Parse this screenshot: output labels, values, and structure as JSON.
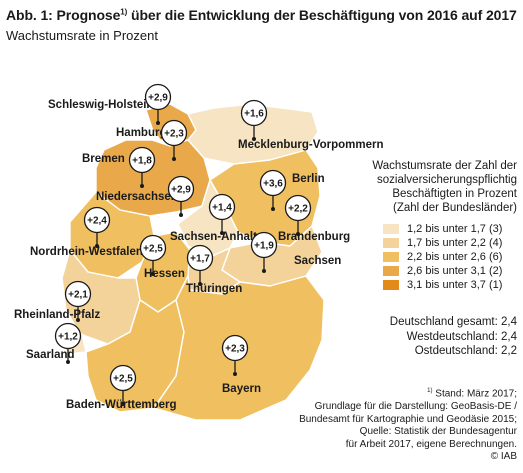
{
  "title": {
    "text": "Abb. 1: Prognose",
    "superscript": "1)",
    "rest": " über die Entwicklung der Beschäftigung von 2016 auf 2017"
  },
  "subtitle": "Wachstumsrate in Prozent",
  "legend": {
    "title_lines": [
      "Wachstumsrate der Zahl der",
      "sozialversicherungspflichtig",
      "Beschäftigten in Prozent",
      "(Zahl der Bundesländer)"
    ],
    "items": [
      {
        "label": "1,2 bis unter 1,7 (3)",
        "color": "#f6e4c3"
      },
      {
        "label": "1,7 bis unter 2,2 (4)",
        "color": "#f3d39a"
      },
      {
        "label": "2,2 bis unter 2,6 (6)",
        "color": "#f0bf60"
      },
      {
        "label": "2,6 bis unter 3,1 (2)",
        "color": "#e9a94b"
      },
      {
        "label": "3,1 bis unter 3,7 (1)",
        "color": "#e28a1a"
      }
    ]
  },
  "totals": {
    "line1": "Deutschland gesamt: 2,4",
    "line2": "Westdeutschland: 2,4",
    "line3": "Ostdeutschland: 2,2"
  },
  "footnote": {
    "line1_sup": "1)",
    "line1": " Stand: März 2017;",
    "line2": "Grundlage für die Darstellung: GeoBasis-DE /",
    "line3": "Bundesamt für Kartographie und Geodäsie 2015;",
    "line4": "Quelle: Statistik der Bundesagentur",
    "line5": "für Arbeit 2017, eigene Berechnungen.",
    "line6": "© IAB"
  },
  "states": [
    {
      "name": "Schleswig-Holstein",
      "value": "+2,9",
      "color": "#e9a94b"
    },
    {
      "name": "Hamburg",
      "value": "+2,3",
      "color": "#f0bf60"
    },
    {
      "name": "Mecklenburg-Vorpommern",
      "value": "+1,6",
      "color": "#f6e4c3"
    },
    {
      "name": "Bremen",
      "value": "+1,8",
      "color": "#f3d39a"
    },
    {
      "name": "Niedersachsen",
      "value": "+2,9",
      "color": "#e9a94b"
    },
    {
      "name": "Berlin",
      "value": "+3,6",
      "color": "#e28a1a"
    },
    {
      "name": "Brandenburg",
      "value": "+2,2",
      "color": "#f0bf60"
    },
    {
      "name": "Sachsen-Anhalt",
      "value": "+1,4",
      "color": "#f6e4c3"
    },
    {
      "name": "Sachsen",
      "value": "+1,9",
      "color": "#f3d39a"
    },
    {
      "name": "Nordrhein-Westfalen",
      "value": "+2,4",
      "color": "#f0bf60"
    },
    {
      "name": "Hessen",
      "value": "+2,5",
      "color": "#f0bf60"
    },
    {
      "name": "Thüringen",
      "value": "+1,7",
      "color": "#f3d39a"
    },
    {
      "name": "Rheinland-Pfalz",
      "value": "+2,1",
      "color": "#f3d39a"
    },
    {
      "name": "Saarland",
      "value": "+1,2",
      "color": "#f6e4c3"
    },
    {
      "name": "Baden-Württemberg",
      "value": "+2,5",
      "color": "#f0bf60"
    },
    {
      "name": "Bayern",
      "value": "+2,3",
      "color": "#f0bf60"
    }
  ]
}
